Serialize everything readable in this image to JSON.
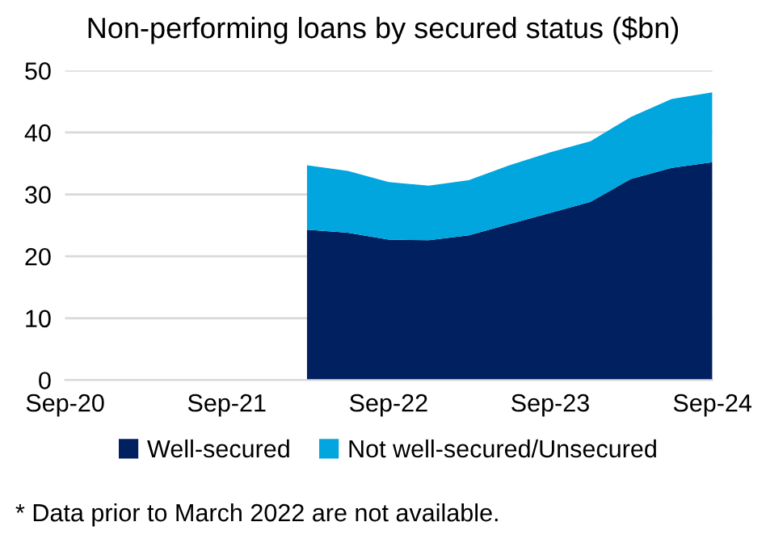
{
  "chart_data": {
    "type": "area",
    "stacked": true,
    "title": "Non-performing loans by secured status ($bn)",
    "x": [
      "2022-03",
      "2022-06",
      "2022-09",
      "2022-12",
      "2023-03",
      "2023-06",
      "2023-09",
      "2023-12",
      "2024-03",
      "2024-06",
      "2024-09"
    ],
    "series": [
      {
        "name": "Well-secured",
        "color": "#002060",
        "values": [
          24.3,
          23.8,
          22.7,
          22.6,
          23.4,
          25.2,
          27.0,
          28.8,
          32.5,
          34.3,
          35.2
        ]
      },
      {
        "name": "Not well-secured/Unsecured",
        "color": "#00a6dd",
        "values": [
          10.4,
          10.0,
          9.3,
          8.8,
          8.9,
          9.5,
          9.8,
          9.8,
          10.0,
          11.1,
          11.3
        ]
      }
    ],
    "xlim": [
      "2020-09",
      "2024-09"
    ],
    "xticks": [
      {
        "value": "2020-09",
        "label": "Sep-20"
      },
      {
        "value": "2021-09",
        "label": "Sep-21"
      },
      {
        "value": "2022-09",
        "label": "Sep-22"
      },
      {
        "value": "2023-09",
        "label": "Sep-23"
      },
      {
        "value": "2024-09",
        "label": "Sep-24"
      }
    ],
    "ylim": [
      0,
      50
    ],
    "yticks": [
      0,
      10,
      20,
      30,
      40,
      50
    ],
    "grid": "y",
    "legend": "bottom",
    "annotations": [
      "* Data prior to March 2022 are not available."
    ]
  }
}
